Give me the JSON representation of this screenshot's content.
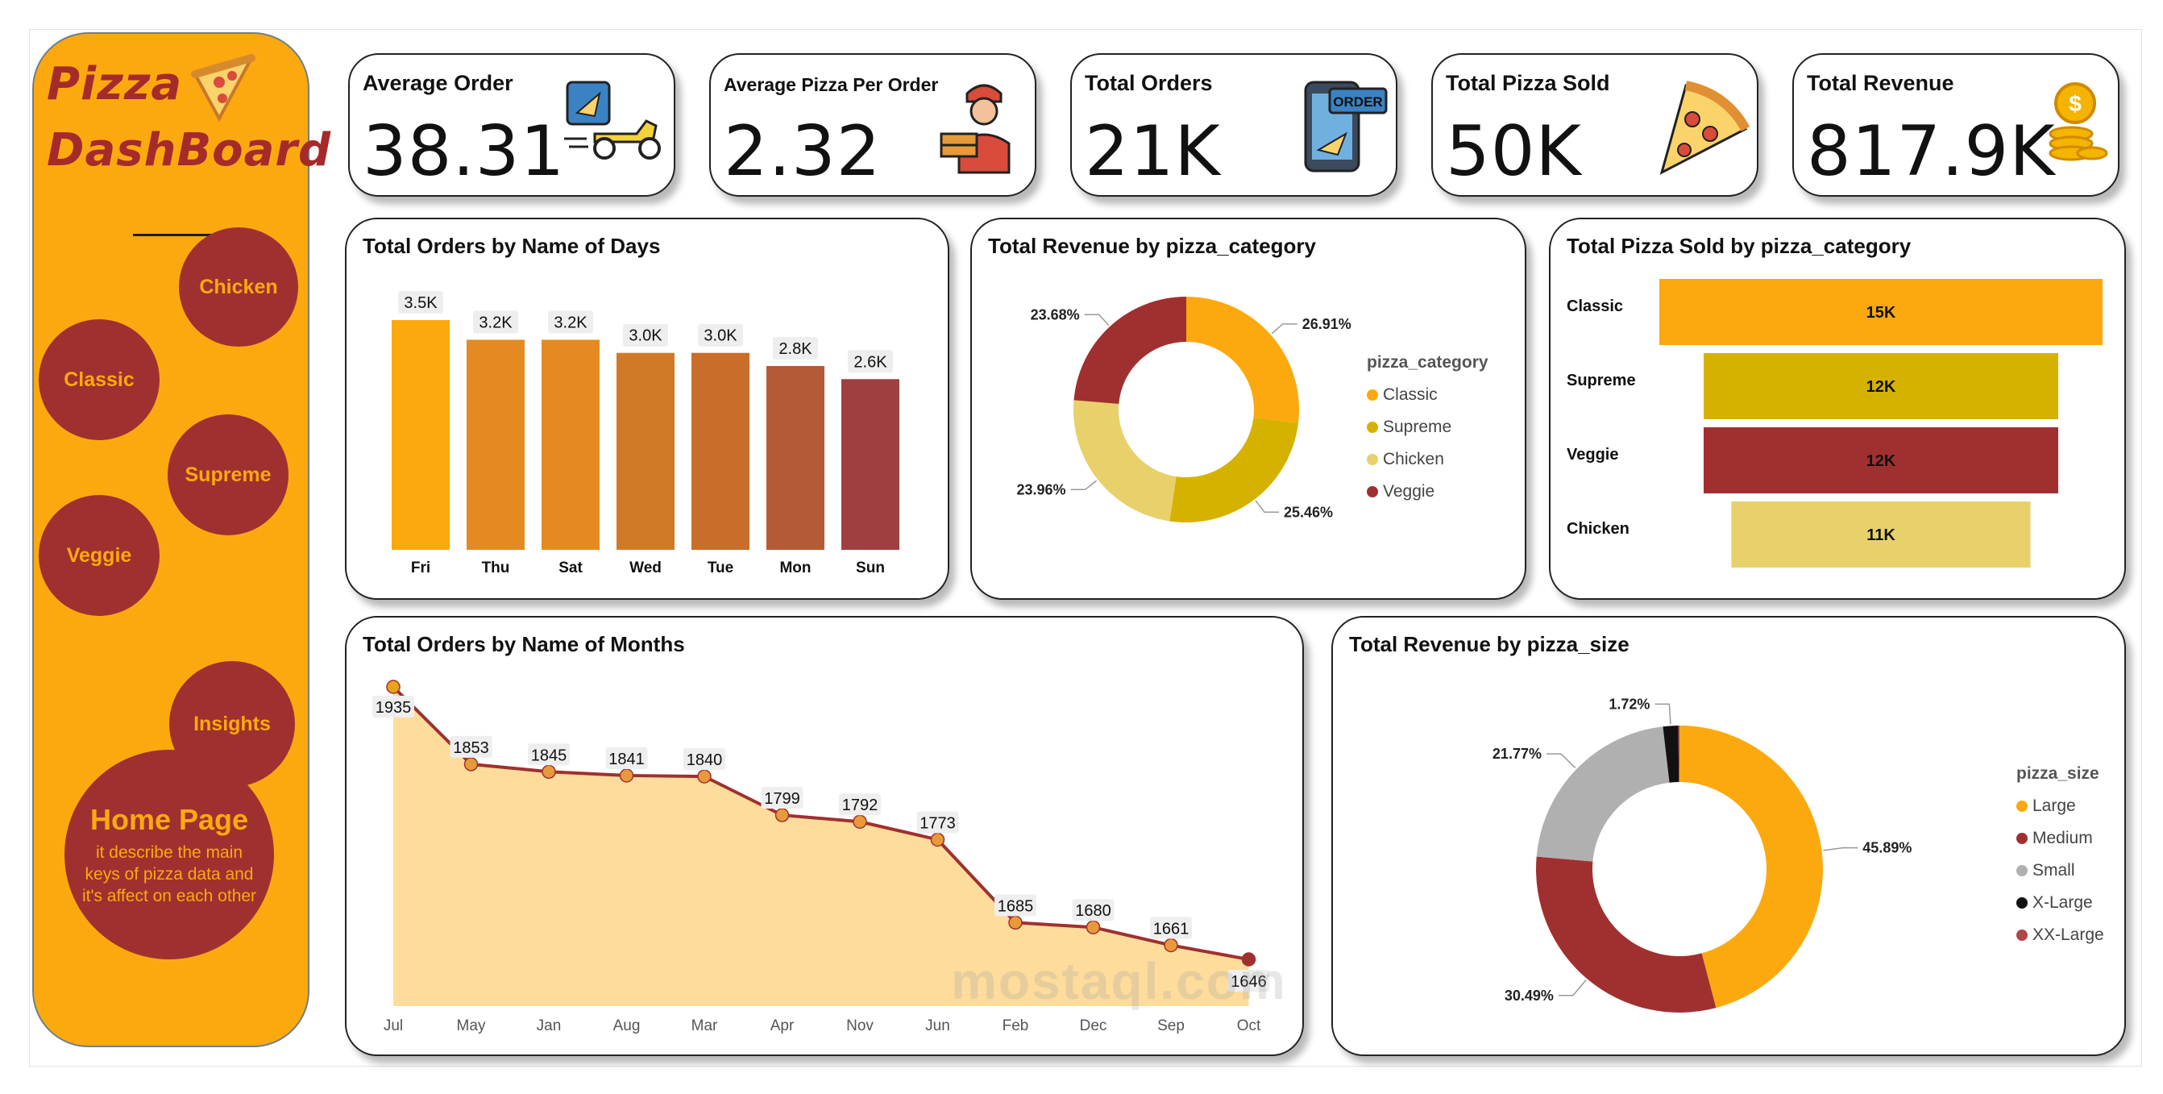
{
  "sidebar": {
    "title_line1": "Pizza",
    "title_line2": "DashBoard",
    "nav": [
      "Chicken",
      "Classic",
      "Supreme",
      "Veggie",
      "Insights"
    ],
    "home_title": "Home Page",
    "home_desc": "it describe the main keys of pizza data and it's affect on each other"
  },
  "kpis": [
    {
      "title": "Average Order",
      "value": "38.31",
      "icon": "delivery-scooter-icon"
    },
    {
      "title": "Average Pizza Per Order",
      "value": "2.32",
      "icon": "delivery-man-icon"
    },
    {
      "title": "Total Orders",
      "value": "21K",
      "icon": "phone-order-icon"
    },
    {
      "title": "Total Pizza Sold",
      "value": "50K",
      "icon": "pizza-slice-icon"
    },
    {
      "title": "Total Revenue",
      "value": "817.9K",
      "icon": "coins-icon"
    }
  ],
  "watermark": "mostaql.com",
  "colors": {
    "orange": "#fca90f",
    "maroon": "#a03030",
    "gold": "#d6b200",
    "sand": "#e8d16b",
    "gray": "#b0b0b0",
    "black": "#111111",
    "area_fill": "#fddc9c"
  },
  "chart_data": [
    {
      "type": "bar",
      "title": "Total Orders by Name of Days",
      "categories": [
        "Fri",
        "Thu",
        "Sat",
        "Wed",
        "Tue",
        "Mon",
        "Sun"
      ],
      "values": [
        3500,
        3200,
        3200,
        3000,
        3000,
        2800,
        2600
      ],
      "data_labels": [
        "3.5K",
        "3.2K",
        "3.2K",
        "3.0K",
        "3.0K",
        "2.8K",
        "2.6K"
      ],
      "colors": [
        "#fca90f",
        "#e38b22",
        "#e38b22",
        "#d07a28",
        "#c96e2a",
        "#b55a36",
        "#a03f40"
      ],
      "grid": false
    },
    {
      "type": "pie",
      "title": "Total Revenue by pizza_category",
      "legend_title": "pizza_category",
      "legend_position": "right",
      "labels": [
        "Classic",
        "Supreme",
        "Chicken",
        "Veggie"
      ],
      "values": [
        26.91,
        25.46,
        23.96,
        23.68
      ],
      "data_labels": [
        "26.91%",
        "25.46%",
        "23.96%",
        "23.68%"
      ],
      "colors": [
        "#fca90f",
        "#d6b200",
        "#e8d16b",
        "#a03030"
      ]
    },
    {
      "type": "bar",
      "orientation": "horizontal",
      "title": "Total Pizza Sold by pizza_category",
      "categories": [
        "Classic",
        "Supreme",
        "Veggie",
        "Chicken"
      ],
      "values": [
        15000,
        12000,
        12000,
        11000
      ],
      "data_labels": [
        "15K",
        "12K",
        "12K",
        "11K"
      ],
      "colors": [
        "#fca90f",
        "#d6b200",
        "#a03030",
        "#e8d16b"
      ]
    },
    {
      "type": "area",
      "title": "Total Orders by Name of Months",
      "categories": [
        "Jul",
        "May",
        "Jan",
        "Aug",
        "Mar",
        "Apr",
        "Nov",
        "Jun",
        "Feb",
        "Dec",
        "Sep",
        "Oct"
      ],
      "values": [
        1935,
        1853,
        1845,
        1841,
        1840,
        1799,
        1792,
        1773,
        1685,
        1680,
        1661,
        1646
      ],
      "grid": false
    },
    {
      "type": "pie",
      "title": "Total Revenue by pizza_size",
      "legend_title": "pizza_size",
      "legend_position": "right",
      "labels": [
        "Large",
        "Medium",
        "Small",
        "X-Large",
        "XX-Large"
      ],
      "values": [
        45.89,
        30.49,
        21.77,
        1.72,
        0.12
      ],
      "data_labels": [
        "45.89%",
        "30.49%",
        "21.77%",
        "1.72%",
        ""
      ],
      "colors": [
        "#fca90f",
        "#a03030",
        "#b0b0b0",
        "#111111",
        "#b04646"
      ]
    }
  ]
}
